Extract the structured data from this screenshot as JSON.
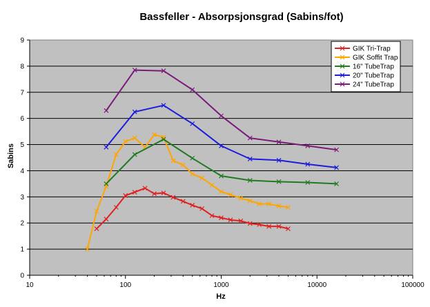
{
  "chart_data": {
    "type": "line",
    "title": "Bassfeller - Absorpsjonsgrad (Sabins/fot)",
    "xlabel": "Hz",
    "ylabel": "Sabins",
    "xscale": "log",
    "xlim": [
      10,
      100000
    ],
    "ylim": [
      0,
      9
    ],
    "xticks": [
      10,
      100,
      1000,
      10000,
      100000
    ],
    "xtick_labels": [
      "10",
      "100",
      "1000",
      "10000",
      "100000"
    ],
    "yticks": [
      0,
      1,
      2,
      3,
      4,
      5,
      6,
      7,
      8,
      9
    ],
    "ytick_labels": [
      "0",
      "1",
      "2",
      "3",
      "4",
      "5",
      "6",
      "7",
      "8",
      "9"
    ],
    "grid": "horizontal",
    "background": "#c0c0c0",
    "legend_position": "top-right",
    "series": [
      {
        "name": "GIK Tri-Trap",
        "color": "#e02020",
        "x": [
          50,
          63,
          80,
          100,
          125,
          160,
          200,
          250,
          315,
          400,
          500,
          630,
          800,
          1000,
          1250,
          1600,
          2000,
          2500,
          3150,
          4000,
          5000
        ],
        "y": [
          1.78,
          2.15,
          2.6,
          3.05,
          3.18,
          3.33,
          3.12,
          3.15,
          2.98,
          2.83,
          2.68,
          2.55,
          2.28,
          2.2,
          2.12,
          2.08,
          1.98,
          1.94,
          1.87,
          1.87,
          1.78
        ]
      },
      {
        "name": "GIK Soffit Trap",
        "color": "#ffa500",
        "x": [
          40,
          50,
          63,
          80,
          100,
          125,
          160,
          200,
          250,
          315,
          400,
          500,
          630,
          800,
          1000,
          1250,
          1600,
          2000,
          2500,
          3150,
          4000,
          5000
        ],
        "y": [
          1.0,
          2.45,
          3.4,
          4.62,
          5.12,
          5.25,
          4.9,
          5.38,
          5.28,
          4.38,
          4.22,
          3.88,
          3.72,
          3.45,
          3.2,
          3.08,
          2.95,
          2.85,
          2.73,
          2.73,
          2.65,
          2.6
        ]
      },
      {
        "name": "16\" TubeTrap",
        "color": "#207a20",
        "x": [
          63,
          125,
          250,
          500,
          1000,
          2000,
          4000,
          8000,
          16000
        ],
        "y": [
          3.5,
          4.62,
          5.2,
          4.48,
          3.8,
          3.63,
          3.58,
          3.55,
          3.5
        ]
      },
      {
        "name": "20\" TubeTrap",
        "color": "#1c1cdc",
        "x": [
          63,
          125,
          250,
          500,
          1000,
          2000,
          4000,
          8000,
          16000
        ],
        "y": [
          4.9,
          6.25,
          6.5,
          5.8,
          4.95,
          4.45,
          4.4,
          4.25,
          4.12
        ]
      },
      {
        "name": "24\" TubeTrap",
        "color": "#7a1a7a",
        "x": [
          63,
          125,
          250,
          500,
          1000,
          2000,
          4000,
          8000,
          16000
        ],
        "y": [
          6.3,
          7.85,
          7.82,
          7.1,
          6.1,
          5.25,
          5.1,
          4.95,
          4.8
        ]
      }
    ]
  }
}
